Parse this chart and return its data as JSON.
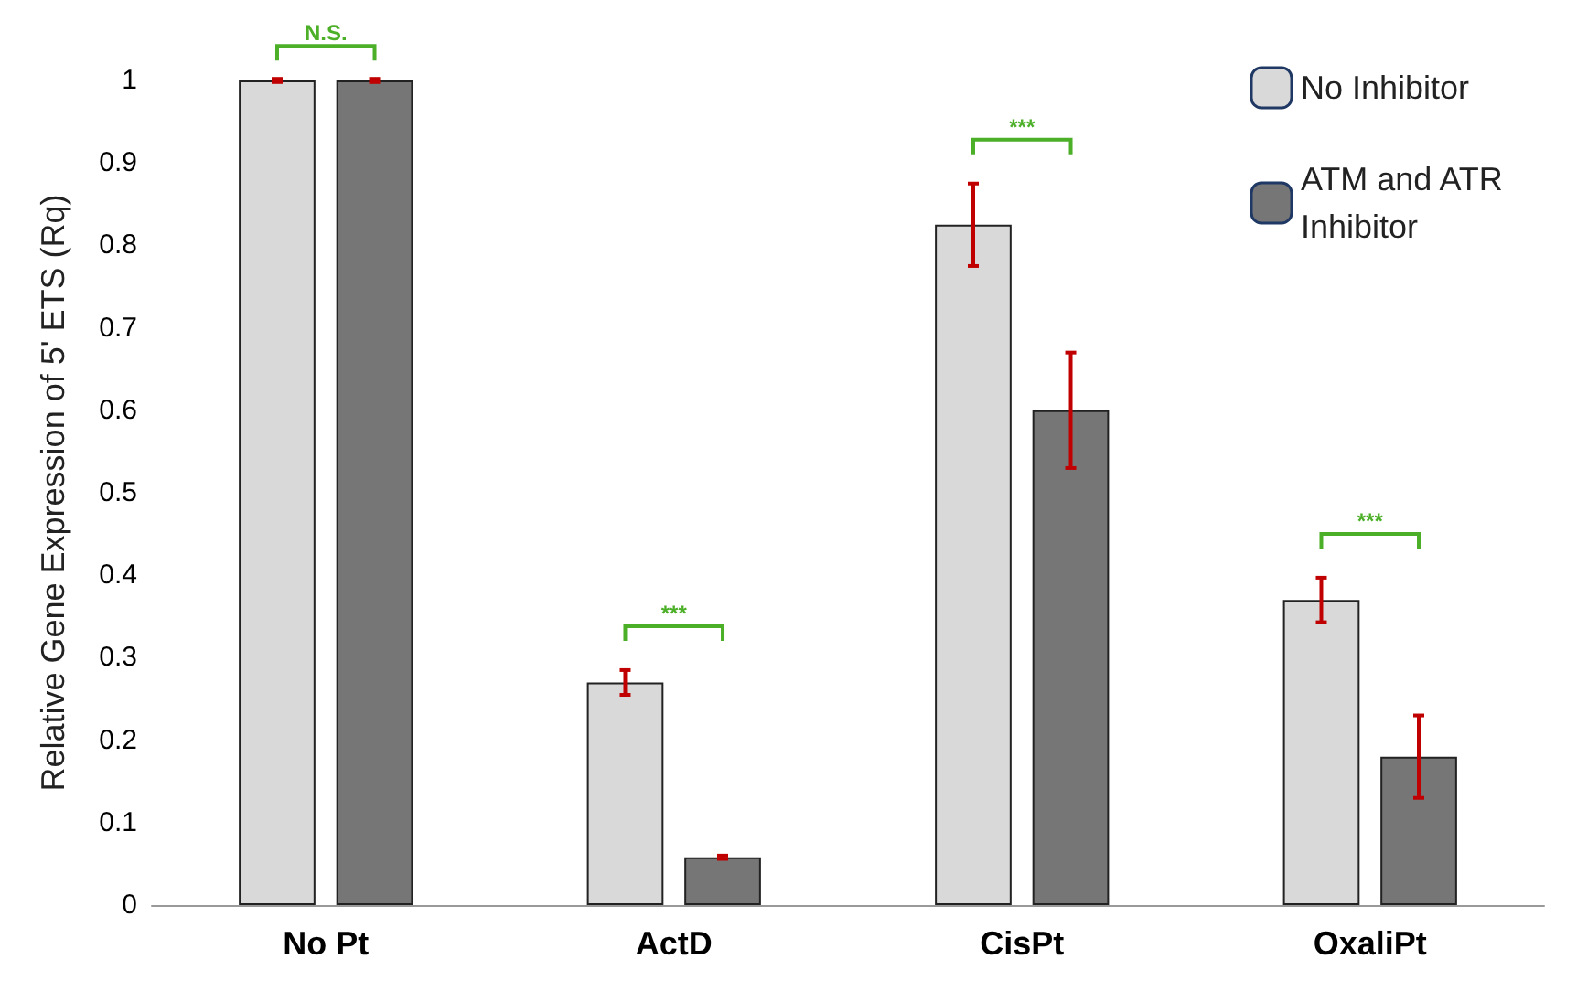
{
  "chart_data": {
    "type": "bar",
    "ylabel": "Relative Gene Expression of 5' ETS (Rq)",
    "categories": [
      "No Pt",
      "ActD",
      "CisPt",
      "OxaliPt"
    ],
    "series": [
      {
        "name": "No Inhibitor",
        "color": "#d9d9d9",
        "values": [
          1,
          0.27,
          0.825,
          0.37
        ],
        "errors": [
          0.002,
          0.015,
          0.05,
          0.027
        ]
      },
      {
        "name": "ATM and ATR Inhibitor",
        "color": "#767676",
        "values": [
          1,
          0.058,
          0.6,
          0.18
        ],
        "errors": [
          0.002,
          0.002,
          0.07,
          0.05
        ]
      }
    ],
    "ylim": [
      0,
      1
    ],
    "yticks": [
      0,
      0.1,
      0.2,
      0.3,
      0.4,
      0.5,
      0.6,
      0.7,
      0.8,
      0.9,
      1
    ],
    "grid": false,
    "legend": "top right",
    "annotations": [
      "N.S.",
      "***",
      "***",
      "***"
    ]
  }
}
